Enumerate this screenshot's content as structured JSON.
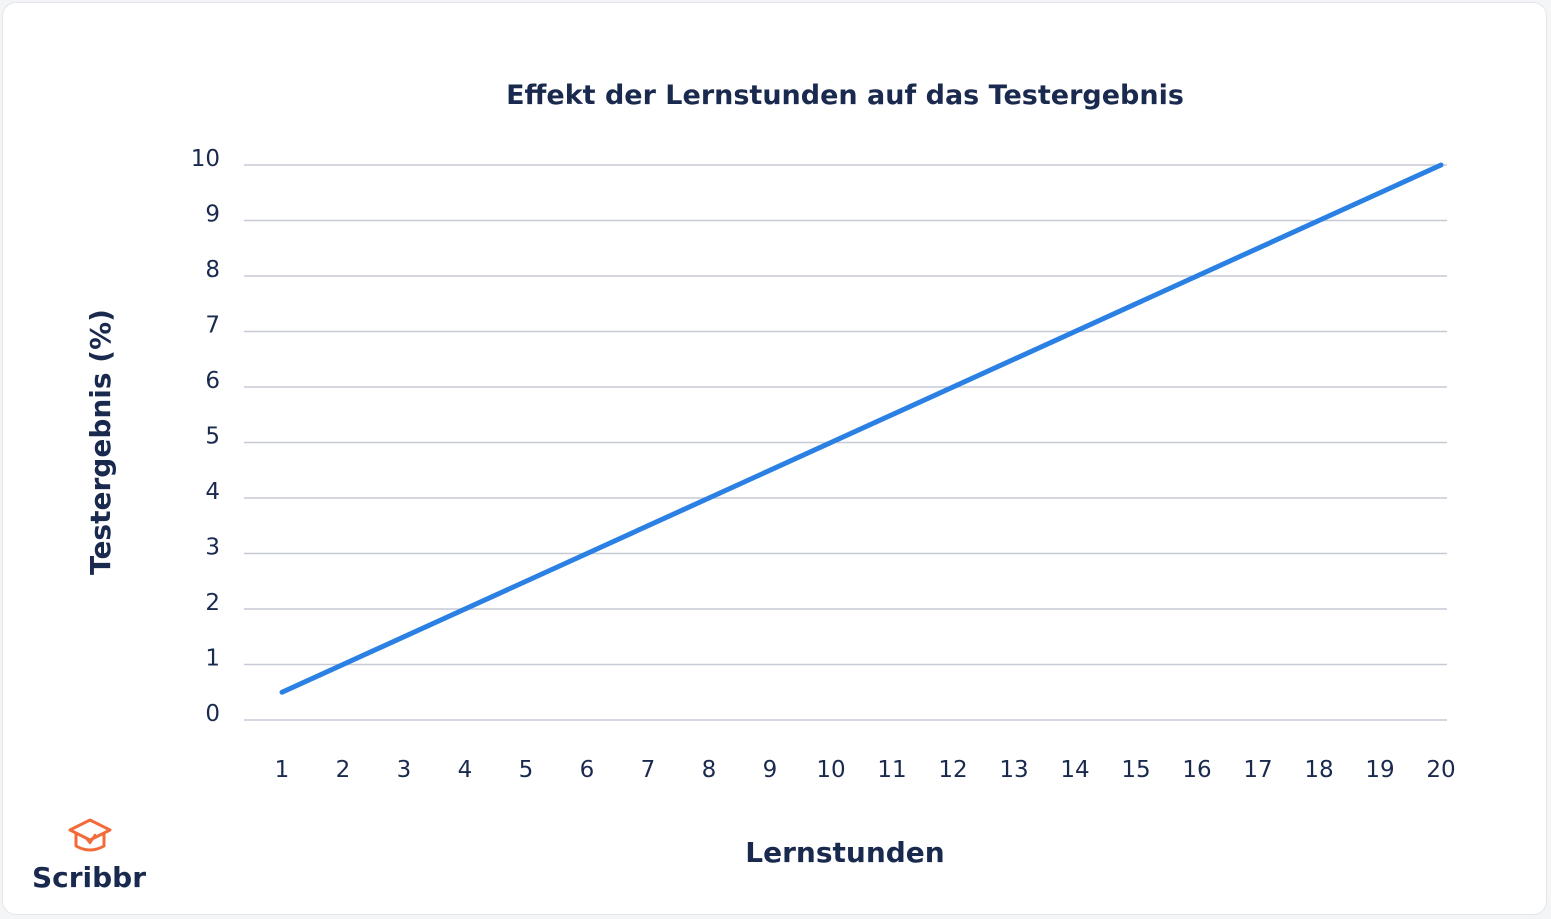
{
  "chart_data": {
    "type": "line",
    "title": "Effekt der Lernstunden auf das Testergebnis",
    "xlabel": "Lernstunden",
    "ylabel": "Testergebnis (%)",
    "x": [
      1,
      2,
      3,
      4,
      5,
      6,
      7,
      8,
      9,
      10,
      11,
      12,
      13,
      14,
      15,
      16,
      17,
      18,
      19,
      20
    ],
    "x_tick_labels": [
      "1",
      "2",
      "3",
      "4",
      "5",
      "6",
      "7",
      "8",
      "9",
      "10",
      "11",
      "12",
      "13",
      "14",
      "15",
      "16",
      "17",
      "18",
      "19",
      "20"
    ],
    "y_tick_labels": [
      "0",
      "1",
      "2",
      "3",
      "4",
      "5",
      "6",
      "7",
      "8",
      "9",
      "10"
    ],
    "y_ticks": [
      0,
      1,
      2,
      3,
      4,
      5,
      6,
      7,
      8,
      9,
      10
    ],
    "ylim": [
      0,
      10
    ],
    "xlim": [
      1,
      20
    ],
    "grid": true,
    "series": [
      {
        "x": [
          1,
          20
        ],
        "values": [
          0.5,
          10
        ],
        "color": "#2b80e4"
      }
    ]
  },
  "branding": {
    "logo_text": "Scribbr",
    "logo_icon": "graduation-cap-icon",
    "logo_color": "#f26b3a"
  }
}
